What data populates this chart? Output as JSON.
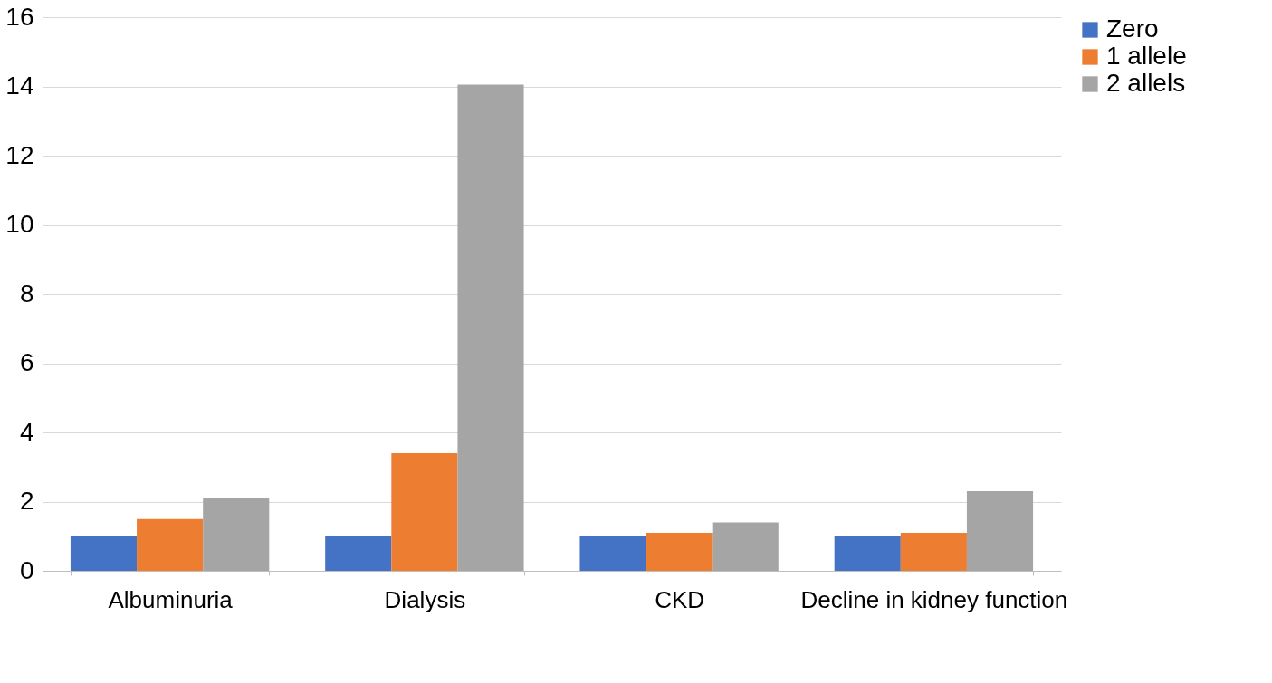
{
  "chart_data": {
    "type": "bar",
    "categories": [
      "Albuminuria",
      "Dialysis",
      "CKD",
      "Decline in kidney function"
    ],
    "series": [
      {
        "name": "Zero",
        "color": "#4472c4",
        "values": [
          1,
          1,
          1,
          1
        ]
      },
      {
        "name": "1 allele",
        "color": "#ed7d31",
        "values": [
          1.5,
          3.4,
          1.1,
          1.1
        ]
      },
      {
        "name": "2 allels",
        "color": "#a5a5a5",
        "values": [
          2.1,
          14.05,
          1.4,
          2.3
        ]
      }
    ],
    "ylim": [
      0,
      16
    ],
    "yticks": [
      0,
      2,
      4,
      6,
      8,
      10,
      12,
      14,
      16
    ],
    "grid": "y",
    "legend": "right"
  }
}
